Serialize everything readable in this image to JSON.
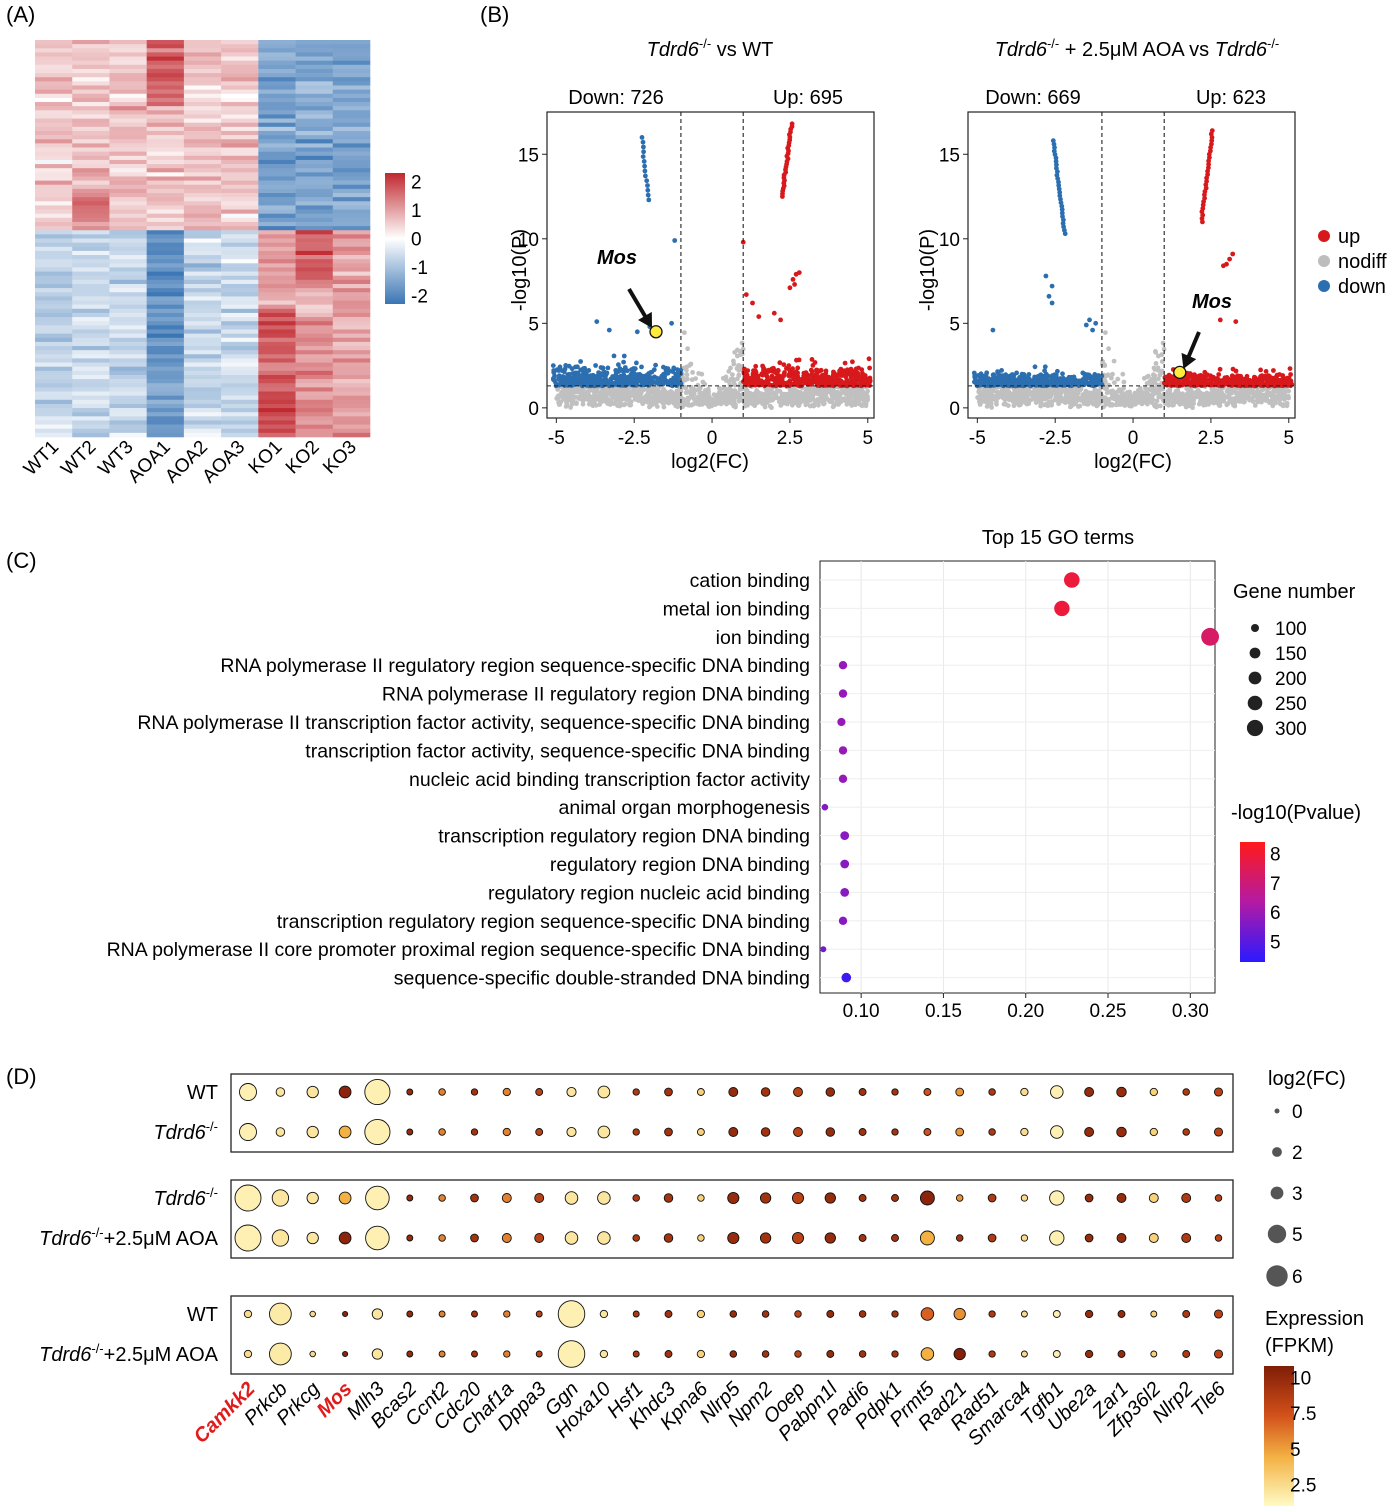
{
  "panels": {
    "A": "(A)",
    "B": "(B)",
    "C": "(C)",
    "D": "(D)"
  },
  "chart_data": [
    {
      "type": "heatmap",
      "panel": "A",
      "columns": [
        "WT1",
        "WT2",
        "WT3",
        "AOA1",
        "AOA2",
        "AOA3",
        "KO1",
        "KO2",
        "KO3"
      ],
      "colorbar": {
        "ticks": [
          2,
          1,
          0,
          -1,
          -2
        ],
        "labels": [
          "2",
          "1",
          "0",
          "-1",
          "-2"
        ],
        "colors": [
          "#3a75b4",
          "#ffffff",
          "#c0282f"
        ]
      }
    },
    {
      "type": "scatter",
      "panel": "B-left",
      "title_gene": "Tdrd6",
      "title_sup": "-/-",
      "title_rest": " vs WT",
      "down_label": "Down: 726",
      "up_label": "Up: 695",
      "xlabel": "log2(FC)",
      "ylabel": "-log10(P)",
      "xticks": [
        -5,
        -2.5,
        0,
        2.5,
        5
      ],
      "xtick_labels": [
        "-5",
        "-2.5",
        "0",
        "2.5",
        "5"
      ],
      "yticks": [
        0,
        5,
        10,
        15
      ],
      "ytick_labels": [
        "0",
        "5",
        "10",
        "15"
      ],
      "xlim": [
        -5.3,
        5.2
      ],
      "ylim": [
        -0.6,
        17.5
      ],
      "vlines": [
        -1,
        1
      ],
      "hline": 1.3,
      "highlight": {
        "label": "Mos",
        "x": -1.8,
        "y": 4.5
      }
    },
    {
      "type": "scatter",
      "panel": "B-right",
      "title_gene": "Tdrd6",
      "title_sup": "-/-",
      "title_mid": " + 2.5μM AOA  vs ",
      "title_gene2": "Tdrd6",
      "title_sup2": "-/-",
      "down_label": "Down: 669",
      "up_label": "Up: 623",
      "xlabel": "log2(FC)",
      "ylabel": "-log10(P)",
      "xticks": [
        -5,
        -2.5,
        0,
        2.5,
        5
      ],
      "xtick_labels": [
        "-5",
        "-2.5",
        "0",
        "2.5",
        "5"
      ],
      "yticks": [
        0,
        5,
        10,
        15
      ],
      "ytick_labels": [
        "0",
        "5",
        "10",
        "15"
      ],
      "xlim": [
        -5.3,
        5.2
      ],
      "ylim": [
        -0.6,
        17.5
      ],
      "vlines": [
        -1,
        1
      ],
      "hline": 1.3,
      "highlight": {
        "label": "Mos",
        "x": 1.5,
        "y": 2.1
      },
      "legend": [
        {
          "label": "up",
          "color": "#d7191c"
        },
        {
          "label": "nodiff",
          "color": "#bdbdbd"
        },
        {
          "label": "down",
          "color": "#2c6fb0"
        }
      ]
    },
    {
      "type": "scatter",
      "panel": "C",
      "title": "Top 15 GO terms",
      "xticks": [
        0.1,
        0.15,
        0.2,
        0.25,
        0.3
      ],
      "xtick_labels": [
        "0.10",
        "0.15",
        "0.20",
        "0.25",
        "0.30"
      ],
      "xlim": [
        0.075,
        0.315
      ],
      "terms": [
        "cation binding",
        "metal ion binding",
        "ion binding",
        "RNA polymerase II regulatory region sequence-specific DNA binding",
        "RNA polymerase II regulatory region DNA binding",
        "RNA polymerase II transcription factor activity, sequence-specific DNA binding",
        "transcription factor activity, sequence-specific DNA binding",
        "nucleic acid binding transcription factor activity",
        "animal organ morphogenesis",
        "transcription regulatory region DNA binding",
        "regulatory region DNA binding",
        "regulatory region nucleic acid binding",
        "transcription regulatory region sequence-specific DNA binding",
        "RNA polymerase II core promoter proximal region sequence-specific DNA binding",
        "sequence-specific double-stranded DNA binding"
      ],
      "ratio": [
        0.228,
        0.222,
        0.312,
        0.089,
        0.089,
        0.088,
        0.089,
        0.089,
        0.078,
        0.09,
        0.09,
        0.09,
        0.089,
        0.077,
        0.091
      ],
      "gene_number": [
        260,
        250,
        330,
        100,
        100,
        98,
        100,
        100,
        80,
        105,
        105,
        105,
        102,
        75,
        120
      ],
      "neglog10p": [
        7.9,
        7.9,
        7.3,
        5.9,
        5.9,
        5.9,
        5.9,
        5.9,
        5.6,
        5.7,
        5.7,
        5.7,
        5.7,
        5.4,
        4.6
      ],
      "size_legend_title": "Gene number",
      "size_legend": [
        100,
        150,
        200,
        250,
        300
      ],
      "size_legend_labels": [
        "100",
        "150",
        "200",
        "250",
        "300"
      ],
      "color_legend_title": "-log10(Pvalue)",
      "color_legend": [
        8,
        7,
        6,
        5
      ],
      "color_legend_labels": [
        "8",
        "7",
        "6",
        "5"
      ]
    },
    {
      "type": "scatter",
      "panel": "D",
      "genes": [
        "Camkk2",
        "Prkcb",
        "Prkcg",
        "Mos",
        "Mlh3",
        "Bcas2",
        "Ccnt2",
        "Cdc20",
        "Chaf1a",
        "Dppa3",
        "Ggn",
        "Hoxa10",
        "Hsf1",
        "Khdc3",
        "Kpna6",
        "Nlrp5",
        "Npm2",
        "Ooep",
        "Pabpn1l",
        "Padi6",
        "Pdpk1",
        "Prmt5",
        "Rad21",
        "Rad51",
        "Smarca4",
        "Tgfb1",
        "Ube2a",
        "Zar1",
        "Zfp36l2",
        "Nlrp2",
        "Tle6"
      ],
      "highlight_genes": [
        "Camkk2",
        "Mos"
      ],
      "groups": [
        {
          "rows": [
            {
              "label": "WT",
              "gene": "",
              "sup": "",
              "rest": ""
            },
            {
              "label": "",
              "gene": "Tdrd6",
              "sup": "-/-",
              "rest": ""
            }
          ],
          "log2fc": [
            3.2,
            0.9,
            1.7,
            1.8,
            5.4,
            0.2,
            0.4,
            0.3,
            0.6,
            0.5,
            1.1,
            1.8,
            0.3,
            0.7,
            0.5,
            1.0,
            0.9,
            1.0,
            0.9,
            0.5,
            0.3,
            0.5,
            0.7,
            0.4,
            0.6,
            2.0,
            1.0,
            1.2,
            0.6,
            0.4,
            0.8
          ],
          "expression": [
            [
              1.5,
              2.0,
              2.0,
              10.5,
              1.5,
              10.0,
              6.0,
              9.5,
              6.0,
              8.5,
              2.0,
              2.0,
              9.0,
              9.5,
              3.0,
              10.0,
              9.5,
              8.5,
              10.0,
              9.5,
              9.5,
              7.5,
              5.5,
              9.0,
              2.5,
              1.5,
              10.0,
              10.0,
              3.0,
              9.0,
              8.5
            ],
            [
              1.5,
              2.0,
              2.0,
              4.5,
              1.5,
              10.0,
              6.0,
              9.5,
              6.0,
              8.5,
              2.0,
              2.0,
              9.0,
              9.5,
              3.0,
              10.0,
              9.5,
              8.5,
              10.0,
              9.5,
              9.5,
              7.5,
              5.5,
              9.0,
              2.5,
              1.5,
              10.0,
              10.0,
              3.0,
              9.0,
              8.5
            ]
          ]
        },
        {
          "rows": [
            {
              "label": "",
              "gene": "Tdrd6",
              "sup": "-/-",
              "rest": ""
            },
            {
              "label": "",
              "gene": "Tdrd6",
              "sup": "-/-",
              "rest": "+2.5μM AOA"
            }
          ],
          "log2fc": [
            5.6,
            3.0,
            1.7,
            1.8,
            5.0,
            0.2,
            0.4,
            0.7,
            1.0,
            1.0,
            2.0,
            2.0,
            0.4,
            0.9,
            0.4,
            1.6,
            1.4,
            1.6,
            1.4,
            0.5,
            0.5,
            2.4,
            0.4,
            0.7,
            0.3,
            2.5,
            0.7,
            1.0,
            1.0,
            1.0,
            0.4
          ],
          "expression": [
            [
              1.5,
              2.0,
              2.0,
              4.5,
              1.5,
              10.0,
              6.0,
              9.5,
              6.0,
              8.5,
              2.0,
              2.0,
              9.0,
              9.5,
              3.0,
              10.0,
              9.5,
              8.5,
              10.0,
              9.5,
              9.5,
              10.5,
              5.5,
              9.0,
              2.5,
              1.5,
              10.0,
              10.0,
              3.0,
              9.0,
              8.5
            ],
            [
              1.5,
              2.0,
              2.0,
              10.5,
              1.5,
              10.0,
              6.0,
              9.5,
              6.0,
              8.5,
              2.0,
              2.0,
              9.0,
              9.5,
              3.0,
              10.0,
              9.5,
              8.5,
              10.0,
              9.5,
              9.5,
              4.5,
              9.5,
              9.0,
              2.5,
              1.5,
              10.0,
              10.0,
              3.0,
              9.0,
              8.5
            ]
          ]
        },
        {
          "rows": [
            {
              "label": "WT",
              "gene": "",
              "sup": "",
              "rest": ""
            },
            {
              "label": "",
              "gene": "Tdrd6",
              "sup": "-/-",
              "rest": "+2.5μM AOA"
            }
          ],
          "log2fc": [
            0.6,
            4.5,
            0.1,
            0.0,
            1.4,
            0.2,
            0.2,
            0.2,
            0.3,
            0.2,
            5.8,
            0.6,
            0.2,
            0.5,
            0.6,
            0.4,
            0.4,
            0.4,
            0.5,
            0.4,
            0.3,
            2.0,
            1.7,
            0.3,
            0.2,
            0.5,
            0.6,
            0.5,
            0.2,
            0.5,
            0.8
          ],
          "expression": [
            [
              2.5,
              1.8,
              2.5,
              10.5,
              2.0,
              10.0,
              6.0,
              9.5,
              6.0,
              8.5,
              1.5,
              2.0,
              9.0,
              9.5,
              3.0,
              10.0,
              9.5,
              8.5,
              10.0,
              9.5,
              9.5,
              7.0,
              5.5,
              9.0,
              2.5,
              1.5,
              10.0,
              10.0,
              3.0,
              9.0,
              8.5
            ],
            [
              2.5,
              1.8,
              2.5,
              10.5,
              2.0,
              10.0,
              6.0,
              9.5,
              6.0,
              8.5,
              1.5,
              2.0,
              9.0,
              9.5,
              3.0,
              10.0,
              9.5,
              8.5,
              10.0,
              9.5,
              9.5,
              4.5,
              10.8,
              9.0,
              2.5,
              1.5,
              10.0,
              10.0,
              3.0,
              9.0,
              8.5
            ]
          ]
        }
      ],
      "size_legend_title": "log2(FC)",
      "size_legend": [
        0,
        2,
        3,
        5,
        6
      ],
      "size_legend_labels": [
        "0",
        "2",
        "3",
        "5",
        "6"
      ],
      "color_legend_title_1": "Expression",
      "color_legend_title_2": "(FPKM)",
      "color_legend": [
        10,
        7.5,
        5,
        2.5
      ],
      "color_legend_labels": [
        "10",
        "7.5",
        "5",
        "2.5"
      ]
    }
  ]
}
